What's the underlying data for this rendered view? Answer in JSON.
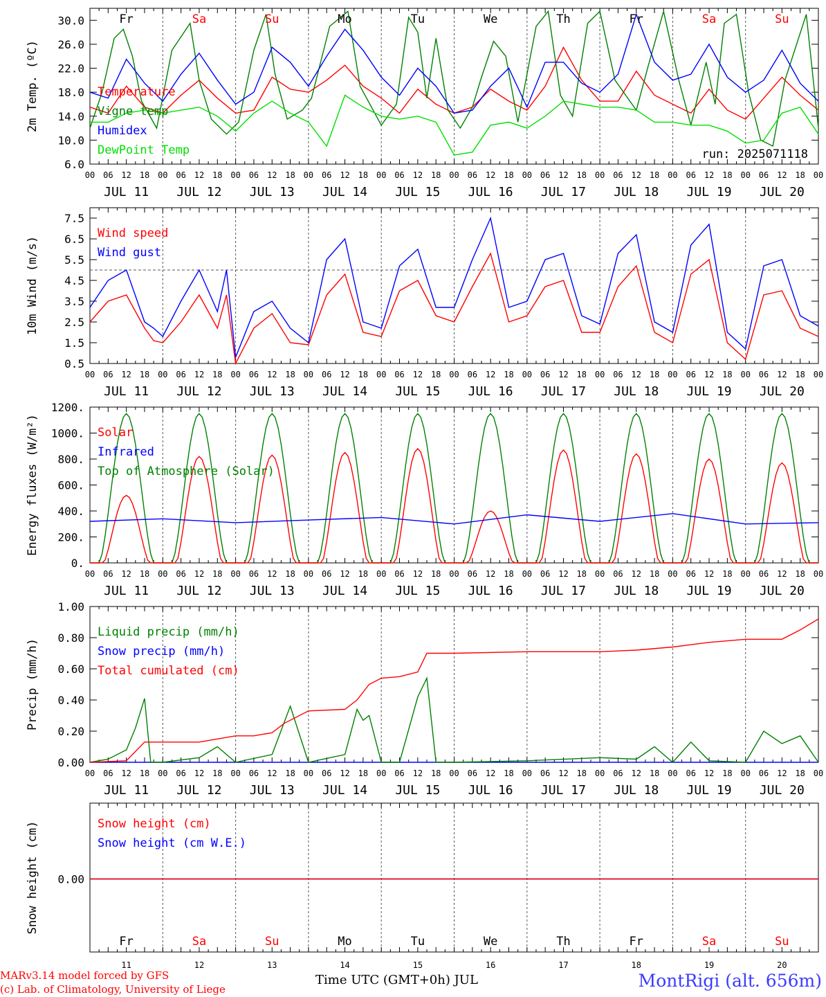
{
  "colors": {
    "red": "#ff0000",
    "green": "#008000",
    "blue": "#0000ff",
    "lime": "#00e000",
    "title": "#3b3bff",
    "axis": "#000000",
    "grid": "#555555"
  },
  "days": [
    "JUL 11",
    "JUL 12",
    "JUL 13",
    "JUL 14",
    "JUL 15",
    "JUL 16",
    "JUL 17",
    "JUL 18",
    "JUL 19",
    "JUL 20"
  ],
  "day_numbers": [
    "11",
    "12",
    "13",
    "14",
    "15",
    "16",
    "17",
    "18",
    "19",
    "20"
  ],
  "weekdays": [
    {
      "label": "Fr",
      "weekend": false
    },
    {
      "label": "Sa",
      "weekend": true
    },
    {
      "label": "Su",
      "weekend": true
    },
    {
      "label": "Mo",
      "weekend": false
    },
    {
      "label": "Tu",
      "weekend": false
    },
    {
      "label": "We",
      "weekend": false
    },
    {
      "label": "Th",
      "weekend": false
    },
    {
      "label": "Fr",
      "weekend": false
    },
    {
      "label": "Sa",
      "weekend": true
    },
    {
      "label": "Su",
      "weekend": true
    }
  ],
  "hour_ticks": [
    "00",
    "06",
    "12",
    "18"
  ],
  "hour_final": "00",
  "footer": {
    "model": "MARv3.14 model forced by GFS",
    "credit": "(c) Lab. of Climatology, University of Liege",
    "xaxis_title": "Time UTC (GMT+0h) JUL",
    "station": "MontRigi (alt. 656m)"
  },
  "chart_data": [
    {
      "type": "line",
      "ylabel": "2m Temp. (ºC)",
      "ylim": [
        6,
        32
      ],
      "yticks": [
        "6.0",
        "10.0",
        "14.0",
        "18.0",
        "22.0",
        "26.0",
        "30.0"
      ],
      "annotation": "run: 2025071118",
      "x_unit": "hours since 2025-07-11 00 UTC",
      "series": [
        {
          "name": "Temperature",
          "color": "red",
          "x": [
            0,
            6,
            12,
            18,
            24,
            30,
            36,
            42,
            48,
            54,
            60,
            66,
            72,
            78,
            84,
            90,
            96,
            102,
            108,
            114,
            120,
            126,
            132,
            138,
            144,
            150,
            156,
            162,
            168,
            174,
            180,
            186,
            192,
            198,
            204,
            210,
            216,
            222,
            228,
            234,
            240
          ],
          "values": [
            15.5,
            14.5,
            19.0,
            15.5,
            14.5,
            17.5,
            20.0,
            17.0,
            14.5,
            15.0,
            20.5,
            18.5,
            18.0,
            20.0,
            22.5,
            19.0,
            17.0,
            14.5,
            18.5,
            16.0,
            14.5,
            15.5,
            18.5,
            16.5,
            15.0,
            19.0,
            25.5,
            20.0,
            16.5,
            16.5,
            21.5,
            17.5,
            16.0,
            14.5,
            18.5,
            15.0,
            13.5,
            17.0,
            20.5,
            17.5,
            15.0
          ]
        },
        {
          "name": "Vigne temp",
          "color": "green",
          "x": [
            0,
            4,
            8,
            11,
            14,
            17,
            22,
            27,
            33,
            36,
            40,
            45,
            49,
            54,
            58,
            61,
            65,
            70,
            73,
            79,
            85,
            89,
            96,
            101,
            105,
            108,
            111,
            114,
            118,
            122,
            126,
            129,
            133,
            137,
            141,
            147,
            151,
            155,
            159,
            164,
            168,
            173,
            180,
            184,
            189,
            194,
            198,
            203,
            206,
            209,
            213,
            217,
            221,
            225,
            229,
            236,
            240
          ],
          "values": [
            12.0,
            18.0,
            27.0,
            28.5,
            24.0,
            16.5,
            12.0,
            25.0,
            29.5,
            20.0,
            13.5,
            11.0,
            13.0,
            25.0,
            31.0,
            21.0,
            13.5,
            15.0,
            17.0,
            29.0,
            31.5,
            19.0,
            12.5,
            16.0,
            30.5,
            28.0,
            17.0,
            27.0,
            15.0,
            12.0,
            15.5,
            20.5,
            26.5,
            24.0,
            13.0,
            29.0,
            31.5,
            17.5,
            14.0,
            29.5,
            31.5,
            20.0,
            15.0,
            22.5,
            31.5,
            20.0,
            12.5,
            23.0,
            16.0,
            29.5,
            31.0,
            18.0,
            10.0,
            9.0,
            20.0,
            31.0,
            12.0
          ]
        },
        {
          "name": "Humidex",
          "color": "blue",
          "x": [
            0,
            6,
            12,
            18,
            24,
            30,
            36,
            42,
            48,
            54,
            60,
            66,
            72,
            78,
            84,
            90,
            96,
            102,
            108,
            114,
            120,
            126,
            132,
            138,
            144,
            150,
            156,
            162,
            168,
            174,
            180,
            186,
            192,
            198,
            204,
            210,
            216,
            222,
            228,
            234,
            240
          ],
          "values": [
            18.0,
            17.0,
            23.5,
            19.5,
            16.5,
            21.0,
            24.5,
            20.0,
            16.0,
            18.0,
            25.5,
            23.0,
            19.0,
            24.0,
            28.5,
            25.0,
            20.5,
            17.5,
            22.0,
            19.0,
            14.5,
            15.0,
            19.0,
            22.0,
            15.5,
            23.0,
            23.0,
            19.5,
            18.0,
            21.0,
            31.0,
            23.0,
            20.0,
            21.0,
            26.0,
            20.5,
            18.0,
            20.0,
            25.0,
            19.5,
            16.5
          ]
        },
        {
          "name": "DewPoint Temp",
          "color": "lime",
          "x": [
            0,
            6,
            12,
            18,
            24,
            30,
            36,
            42,
            48,
            54,
            60,
            66,
            72,
            78,
            84,
            90,
            96,
            102,
            108,
            114,
            120,
            126,
            132,
            138,
            144,
            150,
            156,
            162,
            168,
            174,
            180,
            186,
            192,
            198,
            204,
            210,
            216,
            222,
            228,
            234,
            240
          ],
          "values": [
            13.0,
            13.0,
            14.5,
            15.0,
            14.5,
            15.0,
            15.5,
            14.0,
            11.5,
            14.5,
            16.5,
            14.5,
            13.0,
            9.0,
            17.5,
            15.5,
            14.0,
            13.5,
            14.0,
            13.0,
            7.5,
            8.0,
            12.5,
            13.0,
            12.0,
            14.0,
            16.5,
            16.0,
            15.5,
            15.5,
            15.0,
            13.0,
            13.0,
            12.5,
            12.5,
            11.5,
            9.5,
            10.0,
            14.5,
            15.5,
            11.0
          ]
        }
      ]
    },
    {
      "type": "line",
      "ylabel": "10m Wind (m/s)",
      "ylim": [
        0.5,
        8
      ],
      "yticks": [
        "0.5",
        "1.5",
        "2.5",
        "3.5",
        "4.5",
        "5.5",
        "6.5",
        "7.5"
      ],
      "reference_line": 5,
      "series": [
        {
          "name": "Wind speed",
          "color": "red",
          "x": [
            0,
            6,
            12,
            18,
            21,
            24,
            30,
            36,
            42,
            45,
            48,
            54,
            60,
            66,
            72,
            78,
            84,
            90,
            96,
            102,
            108,
            114,
            120,
            126,
            132,
            138,
            144,
            150,
            156,
            162,
            168,
            174,
            180,
            186,
            192,
            198,
            204,
            210,
            216,
            222,
            228,
            234,
            240
          ],
          "values": [
            2.5,
            3.5,
            3.8,
            2.2,
            1.6,
            1.5,
            2.5,
            3.8,
            2.2,
            3.8,
            0.5,
            2.2,
            2.9,
            1.5,
            1.4,
            3.8,
            4.8,
            2.0,
            1.8,
            4.0,
            4.5,
            2.8,
            2.5,
            4.2,
            5.8,
            2.5,
            2.8,
            4.2,
            4.5,
            2.0,
            2.0,
            4.2,
            5.2,
            2.0,
            1.5,
            4.8,
            5.5,
            1.5,
            0.7,
            3.8,
            4.0,
            2.2,
            1.8
          ]
        },
        {
          "name": "Wind gust",
          "color": "blue",
          "x": [
            0,
            6,
            12,
            18,
            21,
            24,
            30,
            36,
            42,
            45,
            48,
            54,
            60,
            66,
            72,
            78,
            84,
            90,
            96,
            102,
            108,
            114,
            120,
            126,
            132,
            138,
            144,
            150,
            156,
            162,
            168,
            174,
            180,
            186,
            192,
            198,
            204,
            210,
            216,
            222,
            228,
            234,
            240
          ],
          "values": [
            3.2,
            4.5,
            5.0,
            2.5,
            2.2,
            1.8,
            3.5,
            5.0,
            3.0,
            5.0,
            0.8,
            3.0,
            3.5,
            2.2,
            1.5,
            5.5,
            6.5,
            2.5,
            2.2,
            5.2,
            6.0,
            3.2,
            3.2,
            5.5,
            7.5,
            3.2,
            3.5,
            5.5,
            5.8,
            2.8,
            2.4,
            5.8,
            6.7,
            2.5,
            2.0,
            6.2,
            7.2,
            2.0,
            1.2,
            5.2,
            5.5,
            2.8,
            2.3
          ]
        }
      ]
    },
    {
      "type": "line",
      "ylabel": "Energy fluxes (W/m²)",
      "ylim": [
        0,
        1200
      ],
      "yticks": [
        "0.",
        "200.",
        "400.",
        "600.",
        "800.",
        "1000.",
        "1200."
      ],
      "series": [
        {
          "name": "Solar",
          "color": "red",
          "values_by_day_peak": [
            520,
            820,
            830,
            850,
            880,
            400,
            870,
            840,
            800,
            770
          ]
        },
        {
          "name": "Infrared",
          "color": "blue",
          "x": [
            0,
            24,
            48,
            72,
            96,
            120,
            144,
            168,
            192,
            216,
            240
          ],
          "values": [
            320,
            340,
            310,
            330,
            350,
            300,
            370,
            320,
            380,
            300,
            310
          ]
        },
        {
          "name": "Top of Atmosphere (Solar)",
          "color": "green",
          "values_by_day_peak": [
            1150,
            1150,
            1150,
            1150,
            1150,
            1150,
            1150,
            1150,
            1150,
            1150
          ]
        }
      ]
    },
    {
      "type": "line",
      "ylabel": "Precip (mm/h)",
      "ylim": [
        0,
        1.0
      ],
      "yticks": [
        "0.00",
        "0.20",
        "0.40",
        "0.60",
        "0.80",
        "1.00"
      ],
      "series": [
        {
          "name": "Liquid precip (mm/h)",
          "color": "green",
          "x": [
            0,
            6,
            12,
            15,
            18,
            20,
            24,
            36,
            42,
            48,
            60,
            66,
            72,
            84,
            88,
            90,
            92,
            96,
            102,
            108,
            111,
            114,
            117,
            120,
            144,
            168,
            180,
            186,
            192,
            198,
            204,
            216,
            222,
            228,
            234,
            240
          ],
          "values": [
            0,
            0.02,
            0.08,
            0.22,
            0.41,
            0,
            0,
            0.03,
            0.1,
            0,
            0.05,
            0.36,
            0,
            0.05,
            0.34,
            0.27,
            0.3,
            0,
            0,
            0.42,
            0.54,
            0,
            0,
            0,
            0.01,
            0.03,
            0.02,
            0.1,
            0,
            0.13,
            0.01,
            0,
            0.2,
            0.12,
            0.17,
            0
          ]
        },
        {
          "name": "Snow precip (mm/h)",
          "color": "blue",
          "x": [
            0,
            240
          ],
          "values": [
            0,
            0
          ]
        },
        {
          "name": "Total cumulated (cm)",
          "color": "red",
          "x": [
            0,
            12,
            18,
            36,
            42,
            48,
            54,
            60,
            64,
            72,
            84,
            88,
            92,
            96,
            102,
            108,
            111,
            114,
            120,
            144,
            168,
            180,
            192,
            204,
            216,
            222,
            228,
            234,
            240
          ],
          "values": [
            0,
            0.01,
            0.13,
            0.13,
            0.15,
            0.17,
            0.17,
            0.19,
            0.25,
            0.33,
            0.34,
            0.4,
            0.5,
            0.54,
            0.55,
            0.58,
            0.7,
            0.7,
            0.7,
            0.71,
            0.71,
            0.72,
            0.74,
            0.77,
            0.79,
            0.79,
            0.79,
            0.85,
            0.92
          ]
        }
      ]
    },
    {
      "type": "line",
      "ylabel": "Snow height (cm)",
      "yticks": [
        "0.00"
      ],
      "series": [
        {
          "name": "Snow height (cm)",
          "color": "red",
          "x": [
            0,
            240
          ],
          "values": [
            0,
            0
          ]
        },
        {
          "name": "Snow height (cm W.E.)",
          "color": "blue",
          "x": [
            0,
            240
          ],
          "values": [
            0,
            0
          ]
        }
      ]
    }
  ]
}
